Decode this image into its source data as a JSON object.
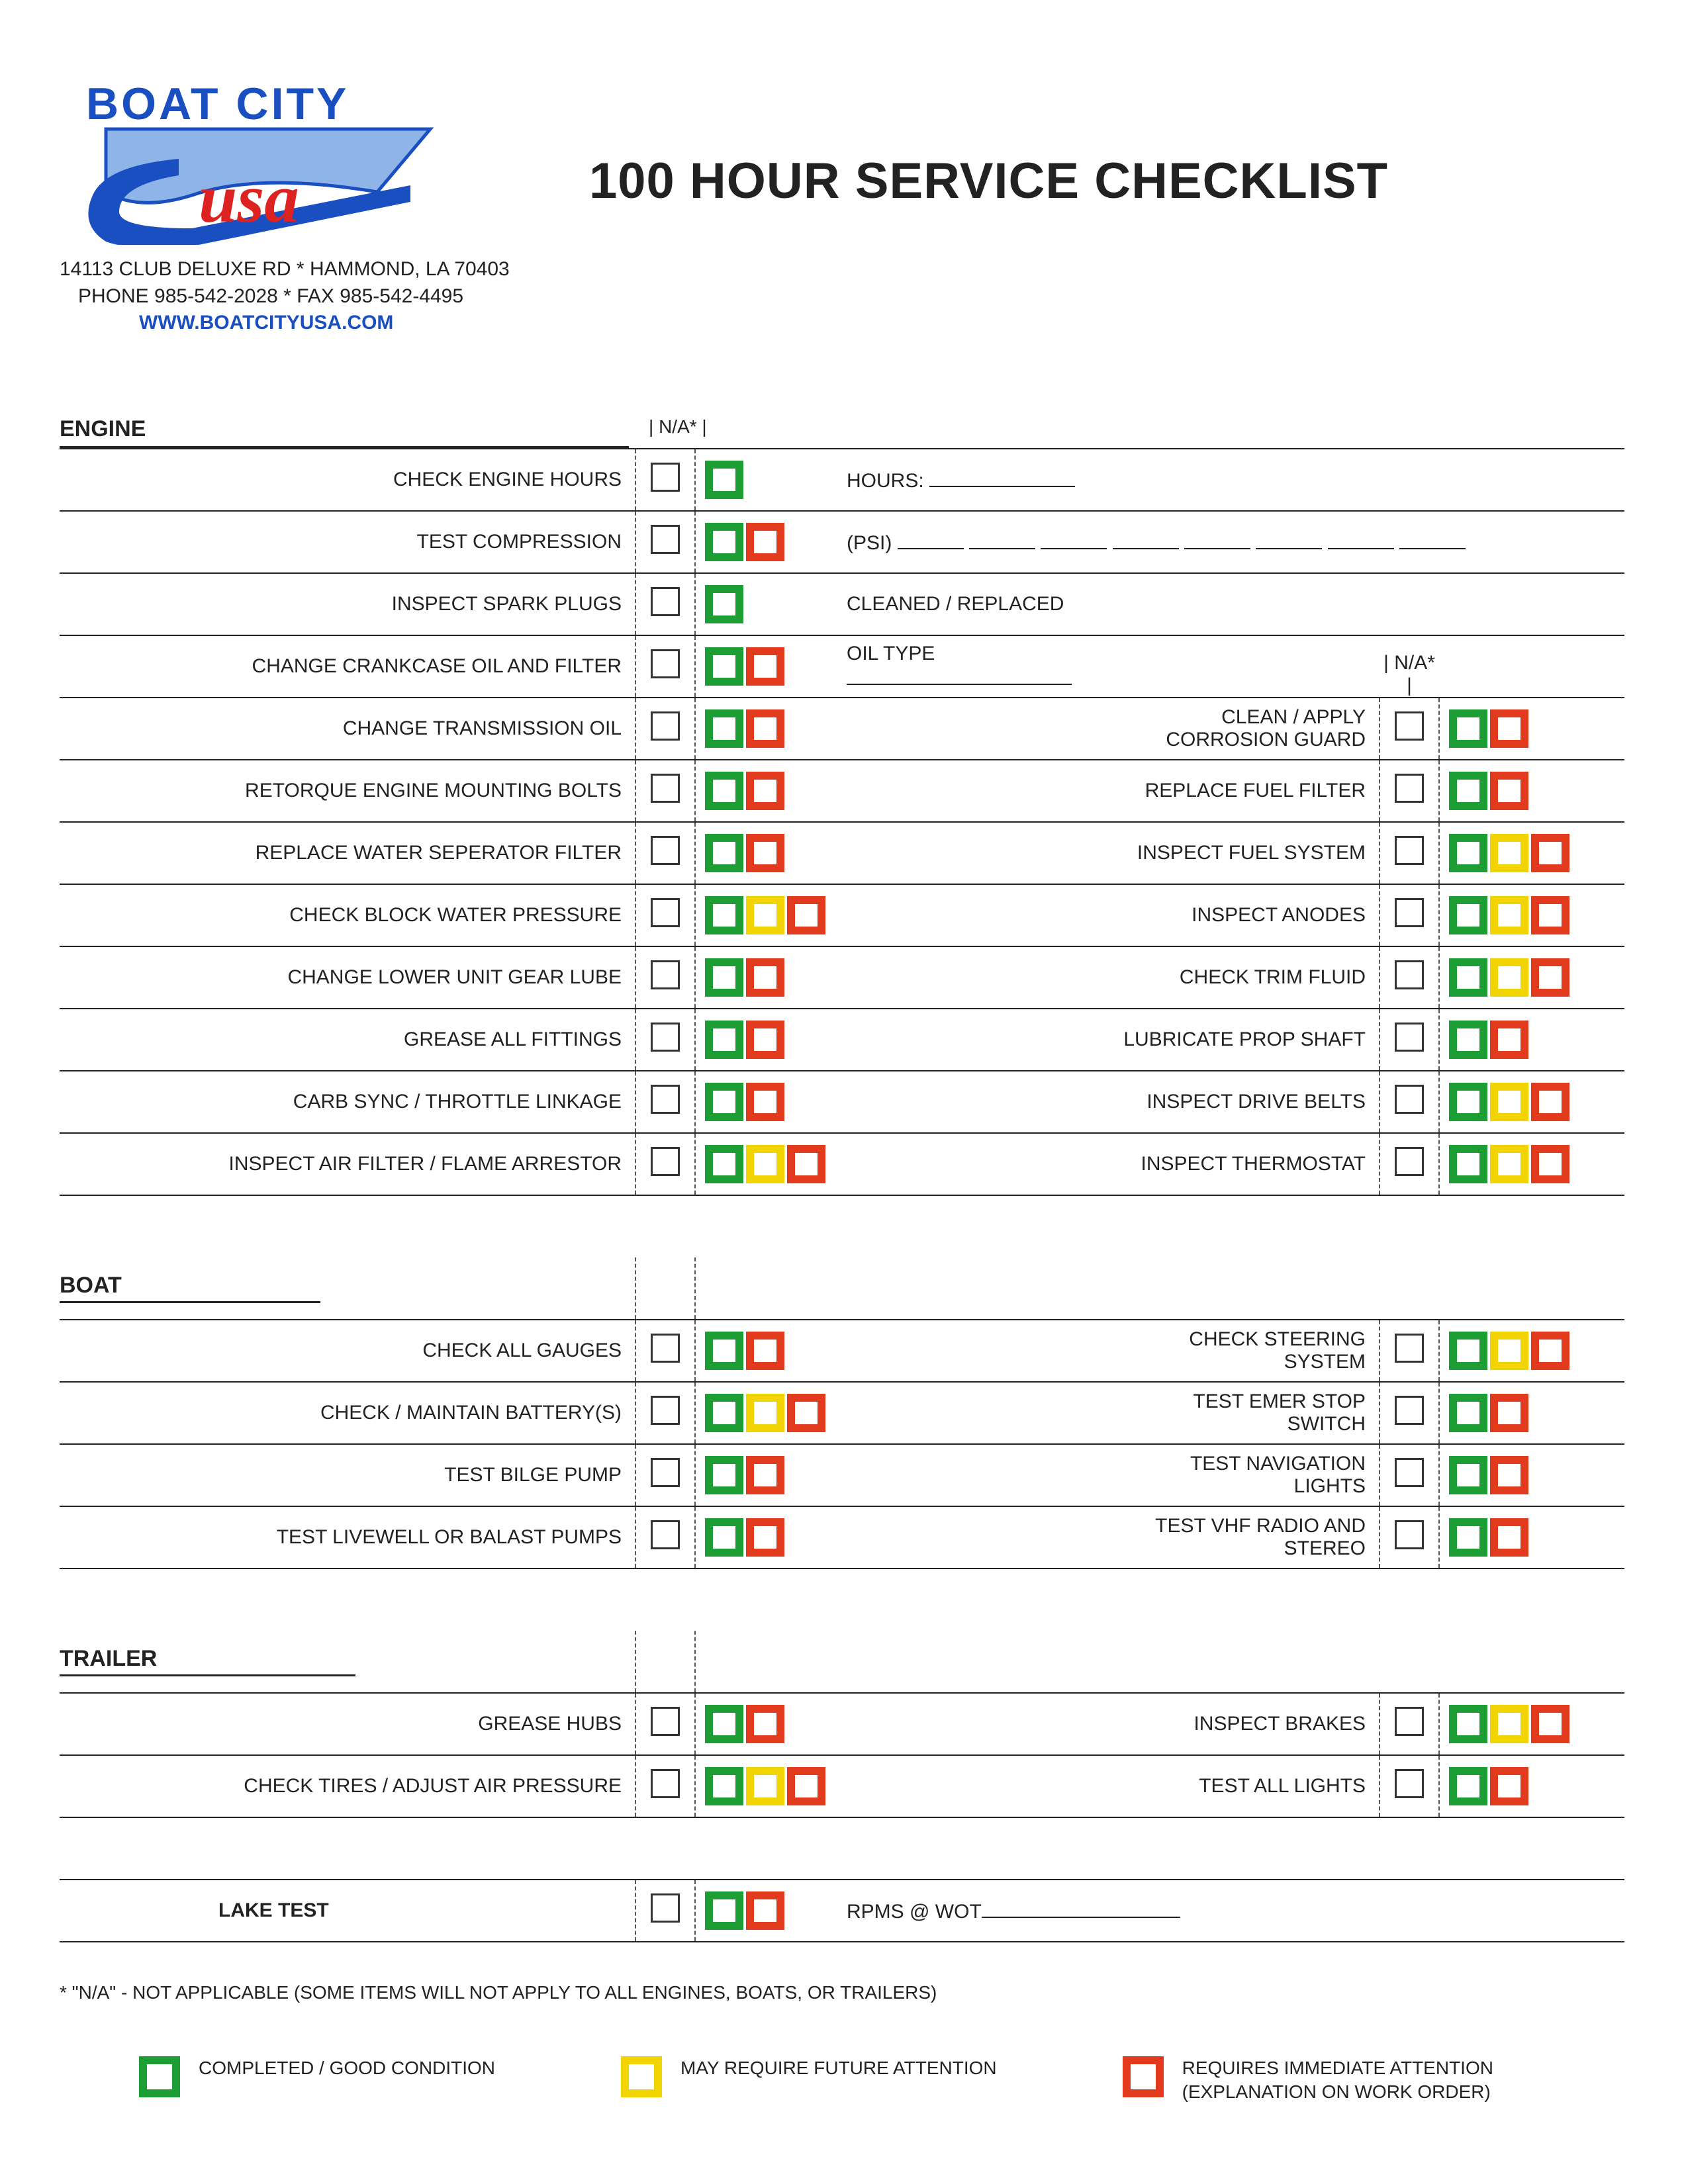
{
  "logo": {
    "line1": "BOAT CITY",
    "line2": "usa"
  },
  "address_line1": "14113 CLUB DELUXE RD * HAMMOND, LA 70403",
  "address_line2": "PHONE 985-542-2028 * FAX 985-542-4495",
  "website": "WWW.BOATCITYUSA.COM",
  "title": "100 HOUR SERVICE CHECKLIST",
  "na_header": "N/A*",
  "sections": {
    "engine": "ENGINE",
    "boat": "BOAT",
    "trailer": "TRAILER",
    "lake": "LAKE TEST"
  },
  "labels": {
    "hours": "HOURS:",
    "psi": "(PSI)",
    "cleaned_replaced": "CLEANED   /   REPLACED",
    "oil_type": "OIL TYPE",
    "rpms": "RPMS @ WOT"
  },
  "engine_rows": [
    {
      "l": "CHECK ENGINE HOURS",
      "ls": "g",
      "extra": "hours"
    },
    {
      "l": "TEST COMPRESSION",
      "ls": "gr",
      "extra": "psi"
    },
    {
      "l": "INSPECT SPARK PLUGS",
      "ls": "g",
      "extra": "cleaned"
    },
    {
      "l": "CHANGE CRANKCASE OIL AND FILTER",
      "ls": "gr",
      "extra": "oil",
      "show_na2_header": true
    },
    {
      "l": "CHANGE TRANSMISSION OIL",
      "ls": "gr",
      "r": "CLEAN / APPLY CORROSION GUARD",
      "rs": "gr"
    },
    {
      "l": "RETORQUE ENGINE MOUNTING BOLTS",
      "ls": "gr",
      "r": "REPLACE FUEL FILTER",
      "rs": "gr"
    },
    {
      "l": "REPLACE WATER SEPERATOR FILTER",
      "ls": "gr",
      "r": "INSPECT FUEL SYSTEM",
      "rs": "gyr"
    },
    {
      "l": "CHECK BLOCK WATER PRESSURE",
      "ls": "gyr",
      "r": "INSPECT ANODES",
      "rs": "gyr"
    },
    {
      "l": "CHANGE LOWER UNIT GEAR LUBE",
      "ls": "gr",
      "r": "CHECK TRIM FLUID",
      "rs": "gyr"
    },
    {
      "l": "GREASE ALL FITTINGS",
      "ls": "gr",
      "r": "LUBRICATE PROP SHAFT",
      "rs": "gr"
    },
    {
      "l": "CARB SYNC / THROTTLE LINKAGE",
      "ls": "gr",
      "r": "INSPECT DRIVE BELTS",
      "rs": "gyr"
    },
    {
      "l": "INSPECT AIR FILTER / FLAME ARRESTOR",
      "ls": "gyr",
      "r": "INSPECT THERMOSTAT",
      "rs": "gyr"
    }
  ],
  "boat_rows": [
    {
      "l": "CHECK ALL GAUGES",
      "ls": "gr",
      "r": "CHECK STEERING SYSTEM",
      "rs": "gyr"
    },
    {
      "l": "CHECK / MAINTAIN BATTERY(S)",
      "ls": "gyr",
      "r": "TEST EMER STOP SWITCH",
      "rs": "gr"
    },
    {
      "l": "TEST BILGE PUMP",
      "ls": "gr",
      "r": "TEST NAVIGATION LIGHTS",
      "rs": "gr"
    },
    {
      "l": "TEST LIVEWELL OR BALAST PUMPS",
      "ls": "gr",
      "r": "TEST VHF RADIO AND STEREO",
      "rs": "gr"
    }
  ],
  "trailer_rows": [
    {
      "l": "GREASE HUBS",
      "ls": "gr",
      "r": "INSPECT BRAKES",
      "rs": "gyr"
    },
    {
      "l": "CHECK TIRES / ADJUST AIR PRESSURE",
      "ls": "gyr",
      "r": "TEST ALL LIGHTS",
      "rs": "gr"
    }
  ],
  "footnote": "* \"N/A\" - NOT APPLICABLE (SOME ITEMS WILL NOT APPLY TO ALL ENGINES, BOATS, OR TRAILERS)",
  "legend": {
    "g": "COMPLETED / GOOD CONDITION",
    "y": "MAY REQUIRE FUTURE ATTENTION",
    "r": "REQUIRES IMMEDIATE ATTENTION",
    "r_sub": "(EXPLANATION ON WORK ORDER)"
  },
  "colors": {
    "green": "#1c9e35",
    "yellow": "#f2d400",
    "red": "#e13a1c",
    "logo_blue": "#1a4fc2",
    "logo_light": "#8fb4e8",
    "logo_red": "#d22"
  }
}
